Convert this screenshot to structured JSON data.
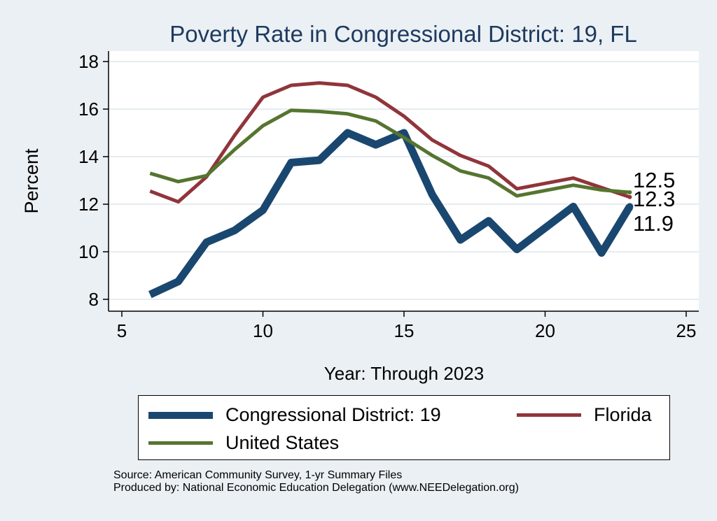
{
  "chart_data": {
    "type": "line",
    "title": "Poverty Rate in Congressional District:  19, FL",
    "xlabel": "Year: Through 2023",
    "ylabel": "Percent",
    "xlim": [
      5,
      25
    ],
    "ylim": [
      8,
      18
    ],
    "xticks": [
      5,
      10,
      15,
      20,
      25
    ],
    "yticks": [
      8,
      10,
      12,
      14,
      16,
      18
    ],
    "grid": true,
    "legend_position": "bottom",
    "series": [
      {
        "name": "Congressional District:  19",
        "color": "#1a476f",
        "x": [
          6,
          7,
          8,
          9,
          10,
          11,
          12,
          13,
          14,
          15,
          16,
          17,
          18,
          19,
          21,
          22,
          23
        ],
        "values": [
          8.2,
          8.75,
          10.4,
          10.9,
          11.75,
          13.75,
          13.85,
          15.0,
          14.5,
          15.0,
          12.4,
          10.5,
          11.3,
          10.1,
          11.9,
          9.95,
          11.9
        ],
        "end_label": "11.9"
      },
      {
        "name": "Florida",
        "color": "#90353b",
        "x": [
          6,
          7,
          8,
          9,
          10,
          11,
          12,
          13,
          14,
          15,
          16,
          17,
          18,
          19,
          21,
          22,
          23
        ],
        "values": [
          12.55,
          12.1,
          13.15,
          14.9,
          16.5,
          17.0,
          17.1,
          17.0,
          16.5,
          15.7,
          14.7,
          14.05,
          13.6,
          12.65,
          13.1,
          12.7,
          12.3
        ],
        "end_label": "12.3"
      },
      {
        "name": "United States",
        "color": "#55752f",
        "x": [
          6,
          7,
          8,
          9,
          10,
          11,
          12,
          13,
          14,
          15,
          16,
          17,
          18,
          19,
          21,
          22,
          23
        ],
        "values": [
          13.3,
          12.95,
          13.2,
          14.3,
          15.3,
          15.95,
          15.9,
          15.8,
          15.5,
          14.8,
          14.05,
          13.4,
          13.1,
          12.35,
          12.8,
          12.6,
          12.5
        ],
        "end_label": "12.5"
      }
    ]
  },
  "source": {
    "line1": "Source: American Community Survey, 1-yr Summary Files",
    "line2": "Produced by: National Economic Education Delegation (www.NEEDelegation.org)"
  }
}
